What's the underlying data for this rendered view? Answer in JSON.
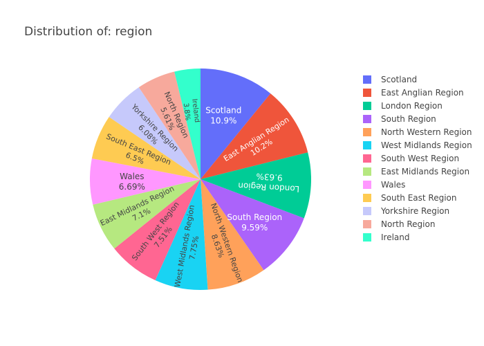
{
  "chart_data": {
    "type": "pie",
    "title": "Distribution of: region",
    "legend_position": "right",
    "slices": [
      {
        "label": "Scotland",
        "value": 10.9,
        "text": "10.9%",
        "color": "#636efa"
      },
      {
        "label": "East Anglian Region",
        "value": 10.2,
        "text": "10.2%",
        "color": "#EF553B"
      },
      {
        "label": "London Region",
        "value": 9.63,
        "text": "9.63%",
        "color": "#00cc96"
      },
      {
        "label": "South Region",
        "value": 9.59,
        "text": "9.59%",
        "color": "#ab63fa"
      },
      {
        "label": "North Western Region",
        "value": 8.63,
        "text": "8.63%",
        "color": "#FFA15A"
      },
      {
        "label": "West Midlands Region",
        "value": 7.75,
        "text": "7.75%",
        "color": "#19d3f3"
      },
      {
        "label": "South West Region",
        "value": 7.51,
        "text": "7.51%",
        "color": "#FF6692"
      },
      {
        "label": "East Midlands Region",
        "value": 7.1,
        "text": "7.1%",
        "color": "#B6E880"
      },
      {
        "label": "Wales",
        "value": 6.69,
        "text": "6.69%",
        "color": "#FF97FF"
      },
      {
        "label": "South East Region",
        "value": 6.5,
        "text": "6.5%",
        "color": "#FECB52"
      },
      {
        "label": "Yorkshire Region",
        "value": 6.08,
        "text": "6.08%",
        "color": "#c6c9fb"
      },
      {
        "label": "North Region",
        "value": 5.61,
        "text": "5.61%",
        "color": "#f7a99c"
      },
      {
        "label": "Ireland",
        "value": 3.8,
        "text": "3.8%",
        "color": "#33ffcc"
      }
    ]
  }
}
